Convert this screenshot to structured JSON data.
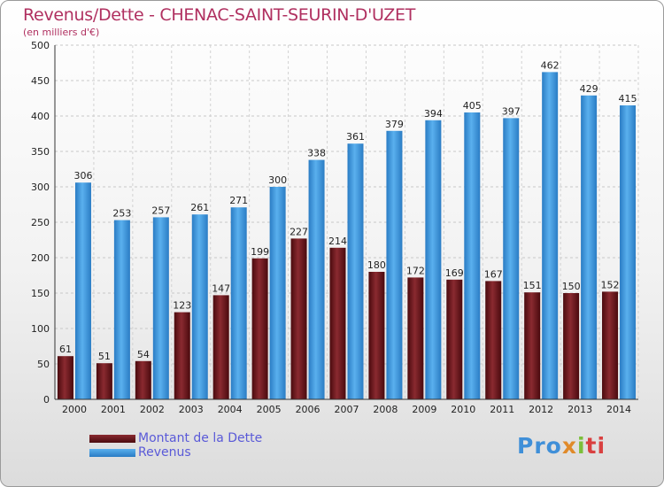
{
  "header": {
    "title": "Revenus/Dette - CHENAC-SAINT-SEURIN-D'UZET",
    "subtitle": "(en milliers d'€)"
  },
  "legend": {
    "dette_label": "Montant de la Dette",
    "revenus_label": "Revenus"
  },
  "logo": {
    "p1": "Pro",
    "p2": "x",
    "p3": "i",
    "p4": "ti"
  },
  "colors": {
    "dette": "#6e1418",
    "revenus": "#3f98e0",
    "title": "#b03060"
  },
  "chart_data": {
    "type": "bar",
    "categories": [
      "2000",
      "2001",
      "2002",
      "2003",
      "2004",
      "2005",
      "2006",
      "2007",
      "2008",
      "2009",
      "2010",
      "2011",
      "2012",
      "2013",
      "2014"
    ],
    "series": [
      {
        "name": "Montant de la Dette",
        "values": [
          61,
          51,
          54,
          123,
          147,
          199,
          227,
          214,
          180,
          172,
          169,
          167,
          151,
          150,
          152
        ]
      },
      {
        "name": "Revenus",
        "values": [
          306,
          253,
          257,
          261,
          271,
          300,
          338,
          361,
          379,
          394,
          405,
          397,
          462,
          429,
          415
        ]
      }
    ],
    "yticks": [
      0,
      50,
      100,
      150,
      200,
      250,
      300,
      350,
      400,
      450,
      500
    ],
    "ylim": [
      0,
      500
    ],
    "grid": true,
    "legend_position": "bottom-left"
  }
}
